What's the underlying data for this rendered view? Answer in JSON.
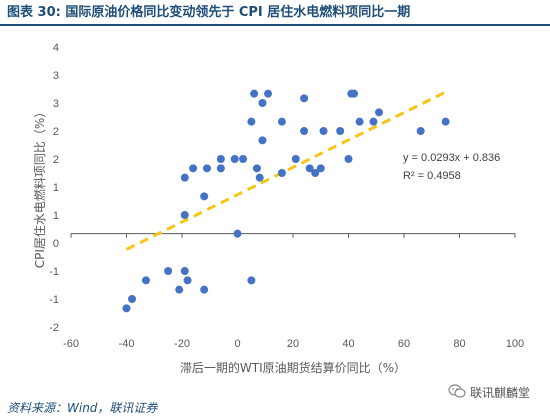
{
  "figure": {
    "title": "图表 30:  国际原油价格同比变动领先于 CPI 居住水电燃料项同比一期",
    "source": "资料来源：Wind，联讯证券",
    "watermark": "联讯麒麟堂"
  },
  "colors": {
    "title": "#1f4e79",
    "points": "#4472c4",
    "trendline": "#f5c518",
    "axis_text": "#595959"
  },
  "chart_data": {
    "type": "scatter",
    "xlabel": "滞后一期的WTI原油期货结算价同比（%）",
    "ylabel": "CPI居住水电燃料项同比（%）",
    "xlim": [
      -60,
      100
    ],
    "ylim": [
      -2,
      4
    ],
    "xticks": [
      "-60",
      "-40",
      "-20",
      "0",
      "20",
      "40",
      "60",
      "80",
      "100"
    ],
    "yticks": [
      "-2",
      "-1",
      "-1",
      "0",
      "1",
      "1",
      "2",
      "2",
      "3",
      "3",
      "4"
    ],
    "grid": false,
    "trendline": {
      "slope": 0.0293,
      "intercept": 0.836,
      "x_range": [
        -40,
        75
      ],
      "style": "dashed"
    },
    "annotations": [
      "y = 0.0293x + 0.836",
      "R² = 0.4958"
    ],
    "points": [
      {
        "x": -40,
        "y": -1.6
      },
      {
        "x": -38,
        "y": -1.4
      },
      {
        "x": -33,
        "y": -1.0
      },
      {
        "x": -25,
        "y": -0.8
      },
      {
        "x": -21,
        "y": -1.2
      },
      {
        "x": -19,
        "y": -0.8
      },
      {
        "x": -18,
        "y": -1.0
      },
      {
        "x": -12,
        "y": -1.2
      },
      {
        "x": -19,
        "y": 0.4
      },
      {
        "x": -19,
        "y": 1.2
      },
      {
        "x": -16,
        "y": 1.4
      },
      {
        "x": -12,
        "y": 0.8
      },
      {
        "x": -11,
        "y": 1.4
      },
      {
        "x": -6,
        "y": 1.4
      },
      {
        "x": -6,
        "y": 1.6
      },
      {
        "x": -1,
        "y": 1.6
      },
      {
        "x": 2,
        "y": 1.6
      },
      {
        "x": 0,
        "y": 0
      },
      {
        "x": 5,
        "y": -1.0
      },
      {
        "x": 5,
        "y": 2.4
      },
      {
        "x": 6,
        "y": 3.0
      },
      {
        "x": 7,
        "y": 1.4
      },
      {
        "x": 9,
        "y": 2.0
      },
      {
        "x": 9,
        "y": 2.8
      },
      {
        "x": 11,
        "y": 3.0
      },
      {
        "x": 8,
        "y": 1.2
      },
      {
        "x": 16,
        "y": 1.3
      },
      {
        "x": 16,
        "y": 2.4
      },
      {
        "x": 21,
        "y": 1.6
      },
      {
        "x": 24,
        "y": 2.2
      },
      {
        "x": 24,
        "y": 2.9
      },
      {
        "x": 26,
        "y": 1.4
      },
      {
        "x": 28,
        "y": 1.3
      },
      {
        "x": 30,
        "y": 1.4
      },
      {
        "x": 31,
        "y": 2.2
      },
      {
        "x": 37,
        "y": 2.2
      },
      {
        "x": 40,
        "y": 1.6
      },
      {
        "x": 41,
        "y": 3.0
      },
      {
        "x": 42,
        "y": 3.0
      },
      {
        "x": 44,
        "y": 2.4
      },
      {
        "x": 49,
        "y": 2.4
      },
      {
        "x": 51,
        "y": 2.6
      },
      {
        "x": 66,
        "y": 2.2
      },
      {
        "x": 75,
        "y": 2.4
      }
    ]
  }
}
